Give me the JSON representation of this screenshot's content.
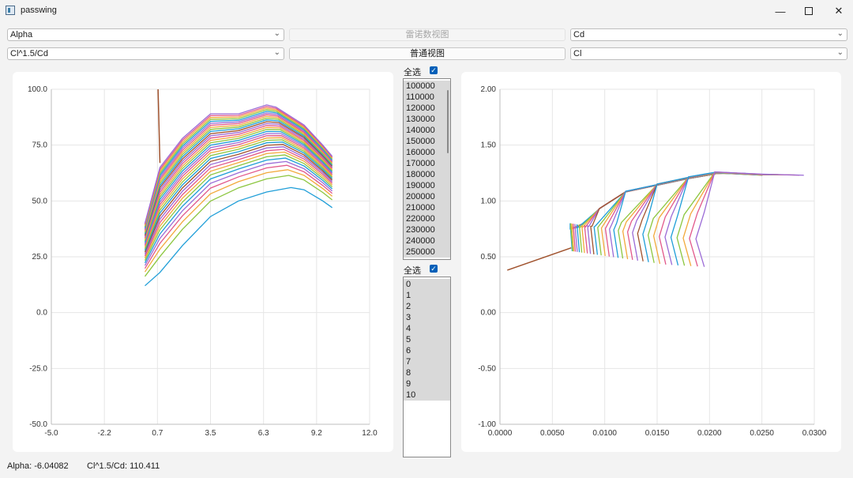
{
  "window": {
    "title": "passwing",
    "minimize_icon": "minimize-icon",
    "maximize_icon": "maximize-icon",
    "close_icon": "close-icon"
  },
  "controls": {
    "left_x_select": "Alpha",
    "left_y_select": "Cl^1.5/Cd",
    "reynolds_view_button": "雷诺数视图",
    "normal_view_button": "普通视图",
    "right_x_select": "Cd",
    "right_y_select": "Cl"
  },
  "reynolds_list": {
    "select_all_label": "全选",
    "checked": true,
    "items": [
      "100000",
      "110000",
      "120000",
      "130000",
      "140000",
      "150000",
      "160000",
      "170000",
      "180000",
      "190000",
      "200000",
      "210000",
      "220000",
      "230000",
      "240000",
      "250000"
    ]
  },
  "index_list": {
    "select_all_label": "全选",
    "checked": true,
    "items": [
      "0",
      "1",
      "2",
      "3",
      "4",
      "5",
      "6",
      "7",
      "8",
      "9",
      "10"
    ]
  },
  "status": {
    "x_readout": "Alpha: -6.04082",
    "y_readout": "Cl^1.5/Cd: 110.411"
  },
  "colors": [
    "#1f9ed8",
    "#8cc63f",
    "#f2a93b",
    "#e2588a",
    "#9b6bd6",
    "#1f9ed8",
    "#8cc63f",
    "#f2a93b",
    "#e2588a",
    "#9b6bd6",
    "#a0522d"
  ],
  "chart_data": [
    {
      "type": "line",
      "x_tick_labels": [
        "-5.0",
        "-2.2",
        "0.7",
        "3.5",
        "6.3",
        "9.2",
        "12.0"
      ],
      "y_tick_labels": [
        "100.0",
        "75.0",
        "50.0",
        "25.0",
        "0.0",
        "-25.0",
        "-50.0"
      ],
      "xlim": [
        -5.0,
        12.0
      ],
      "ylim": [
        -50.0,
        100.0
      ],
      "grid": true,
      "series_count": 32,
      "base_curve": {
        "x": [
          0.0,
          0.8,
          2.0,
          3.5,
          5.0,
          6.5,
          7.8,
          8.5,
          9.5,
          10.0
        ],
        "y": [
          12,
          18,
          30,
          43,
          50,
          54,
          56,
          55,
          50,
          47
        ]
      },
      "top_curve": {
        "x": [
          0.0,
          0.8,
          2.0,
          3.5,
          5.0,
          6.5,
          7.0,
          8.5,
          9.5,
          10.0
        ],
        "y": [
          40,
          65,
          78,
          89,
          89,
          93,
          92,
          84,
          75,
          70
        ]
      },
      "outlier_segment": {
        "x": [
          0.7,
          0.8
        ],
        "y": [
          100,
          67
        ]
      }
    },
    {
      "type": "line",
      "x_tick_labels": [
        "0.0000",
        "0.0050",
        "0.0100",
        "0.0150",
        "0.0200",
        "0.0250",
        "0.0300"
      ],
      "y_tick_labels": [
        "2.00",
        "1.50",
        "1.00",
        "0.50",
        "0.00",
        "-0.50",
        "-1.00"
      ],
      "xlim": [
        0.0,
        0.03
      ],
      "ylim": [
        -1.0,
        2.0
      ],
      "grid": true,
      "series_count": 32,
      "upper_envelope": {
        "x": [
          0.0068,
          0.008,
          0.0095,
          0.012,
          0.015,
          0.018,
          0.0205,
          0.025,
          0.029
        ],
        "y": [
          0.58,
          0.82,
          0.95,
          1.1,
          1.16,
          1.22,
          1.26,
          1.24,
          1.23
        ]
      },
      "tail_min_x": 0.0069,
      "tail_max_x": 0.0195,
      "low_cl_line": {
        "x": [
          0.0007,
          0.0068
        ],
        "y": [
          0.38,
          0.58
        ]
      }
    }
  ]
}
